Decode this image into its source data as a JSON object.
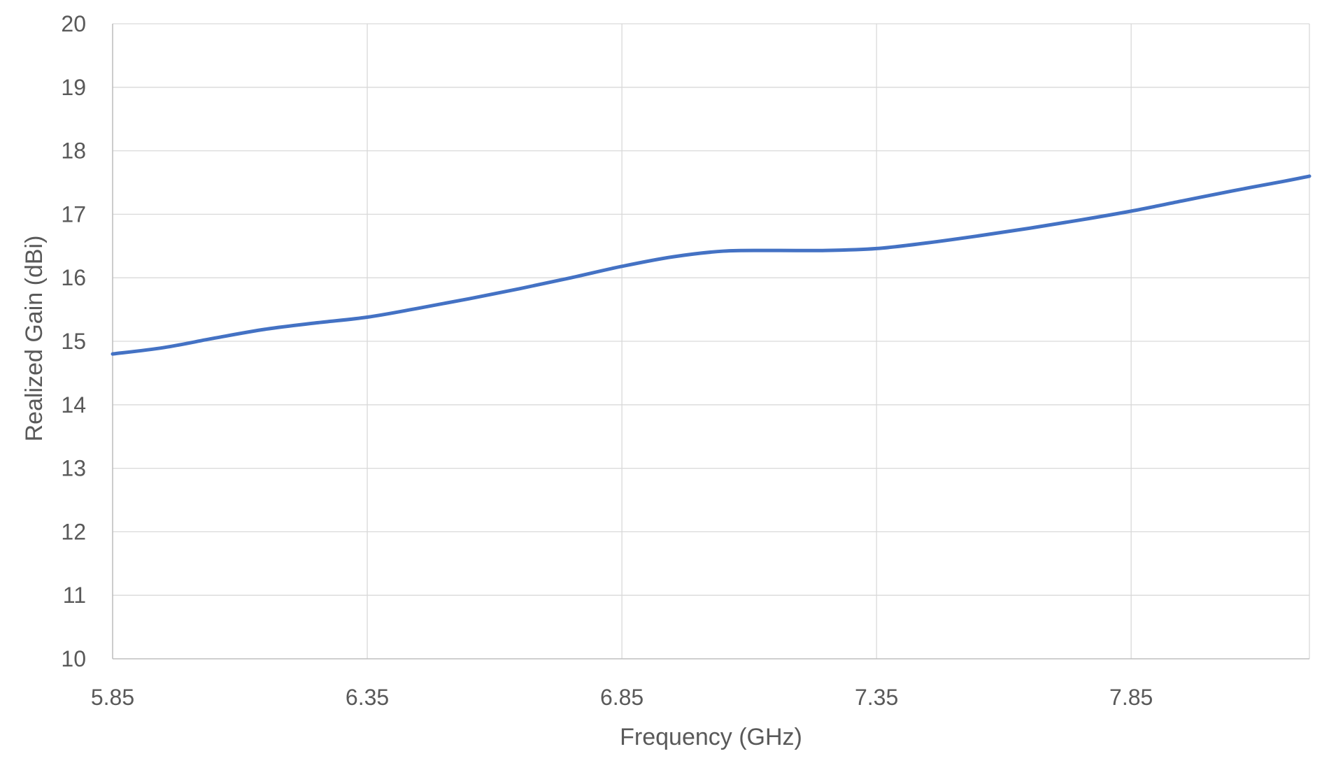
{
  "chart_data": {
    "type": "line",
    "title": "",
    "xlabel": "Frequency (GHz)",
    "ylabel": "Realized Gain (dBi)",
    "xlim": [
      5.85,
      8.2
    ],
    "ylim": [
      10,
      20
    ],
    "x_ticks": [
      "5.85",
      "6.35",
      "6.85",
      "7.35",
      "7.85"
    ],
    "x_tick_values": [
      5.85,
      6.35,
      6.85,
      7.35,
      7.85
    ],
    "y_ticks": [
      10,
      11,
      12,
      13,
      14,
      15,
      16,
      17,
      18,
      19,
      20
    ],
    "grid": true,
    "legend": "none",
    "series": [
      {
        "color": "#4472c4",
        "x": [
          5.85,
          5.95,
          6.05,
          6.15,
          6.25,
          6.35,
          6.45,
          6.55,
          6.65,
          6.75,
          6.85,
          6.95,
          7.05,
          7.15,
          7.25,
          7.35,
          7.45,
          7.55,
          7.65,
          7.75,
          7.85,
          7.95,
          8.05,
          8.15,
          8.2
        ],
        "y": [
          14.8,
          14.9,
          15.05,
          15.19,
          15.29,
          15.38,
          15.52,
          15.67,
          15.83,
          16.0,
          16.18,
          16.33,
          16.42,
          16.43,
          16.43,
          16.46,
          16.55,
          16.66,
          16.78,
          16.91,
          17.05,
          17.21,
          17.37,
          17.52,
          17.6
        ]
      }
    ]
  }
}
